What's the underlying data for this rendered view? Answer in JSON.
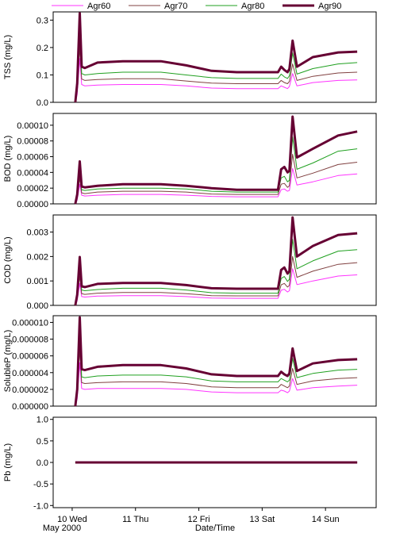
{
  "legend": {
    "position": "top",
    "entries": [
      {
        "name": "Agr60",
        "color": "#ff33ff",
        "width": 1
      },
      {
        "name": "Agr70",
        "color": "#804040",
        "width": 1
      },
      {
        "name": "Agr80",
        "color": "#20a020",
        "width": 1
      },
      {
        "name": "Agr90",
        "color": "#660033",
        "width": 3
      }
    ]
  },
  "x_axis": {
    "label": "Date/Time",
    "range_days": [
      9.7,
      14.8
    ],
    "ticks": [
      {
        "day": 10,
        "label": "10 Wed"
      },
      {
        "day": 11,
        "label": "11 Thu"
      },
      {
        "day": 12,
        "label": "12 Fri"
      },
      {
        "day": 13,
        "label": "13 Sat"
      },
      {
        "day": 14,
        "label": "14 Sun"
      }
    ],
    "sublabel": "May 2000"
  },
  "chart_data": [
    {
      "type": "line",
      "ylabel": "TSS (mg/L)",
      "ylim": [
        0,
        0.33
      ],
      "yticks": [
        "0.0",
        "0.1",
        "0.2",
        "0.3"
      ],
      "ytick_values": [
        0,
        0.1,
        0.2,
        0.3
      ],
      "grid": false,
      "series": [
        {
          "name": "Agr60",
          "x": [
            10.05,
            10.08,
            10.12,
            10.15,
            10.2,
            10.4,
            10.8,
            11.4,
            11.8,
            12.2,
            12.6,
            13.0,
            13.25,
            13.3,
            13.35,
            13.4,
            13.43,
            13.48,
            13.55,
            13.8,
            14.2,
            14.5
          ],
          "y": [
            0.0,
            0.03,
            0.16,
            0.065,
            0.06,
            0.063,
            0.065,
            0.065,
            0.06,
            0.052,
            0.05,
            0.05,
            0.05,
            0.06,
            0.055,
            0.05,
            0.058,
            0.105,
            0.06,
            0.072,
            0.08,
            0.082
          ]
        },
        {
          "name": "Agr70",
          "x": [
            10.05,
            10.08,
            10.12,
            10.15,
            10.2,
            10.4,
            10.8,
            11.4,
            11.8,
            12.2,
            12.6,
            13.0,
            13.25,
            13.3,
            13.35,
            13.4,
            13.43,
            13.48,
            13.55,
            13.8,
            14.2,
            14.5
          ],
          "y": [
            0.0,
            0.04,
            0.2,
            0.085,
            0.08,
            0.083,
            0.086,
            0.086,
            0.078,
            0.07,
            0.068,
            0.068,
            0.068,
            0.08,
            0.072,
            0.068,
            0.076,
            0.14,
            0.08,
            0.095,
            0.107,
            0.11
          ]
        },
        {
          "name": "Agr80",
          "x": [
            10.05,
            10.08,
            10.12,
            10.15,
            10.2,
            10.4,
            10.8,
            11.4,
            11.8,
            12.2,
            12.6,
            13.0,
            13.25,
            13.3,
            13.35,
            13.4,
            13.43,
            13.48,
            13.55,
            13.8,
            14.2,
            14.5
          ],
          "y": [
            0.0,
            0.05,
            0.26,
            0.105,
            0.1,
            0.105,
            0.11,
            0.11,
            0.1,
            0.09,
            0.087,
            0.087,
            0.087,
            0.103,
            0.093,
            0.087,
            0.097,
            0.18,
            0.103,
            0.123,
            0.14,
            0.145
          ]
        },
        {
          "name": "Agr90",
          "x": [
            10.05,
            10.08,
            10.12,
            10.15,
            10.2,
            10.4,
            10.8,
            11.4,
            11.8,
            12.2,
            12.6,
            13.0,
            13.25,
            13.3,
            13.35,
            13.4,
            13.43,
            13.48,
            13.55,
            13.8,
            14.2,
            14.5
          ],
          "y": [
            0.0,
            0.07,
            0.325,
            0.13,
            0.125,
            0.145,
            0.15,
            0.15,
            0.135,
            0.115,
            0.11,
            0.11,
            0.11,
            0.13,
            0.118,
            0.11,
            0.122,
            0.225,
            0.13,
            0.165,
            0.182,
            0.185
          ]
        }
      ]
    },
    {
      "type": "line",
      "ylabel": "BOD (mg/L)",
      "ylim": [
        0,
        0.000115
      ],
      "yticks": [
        "0.00000",
        "0.00002",
        "0.00004",
        "0.00006",
        "0.00008",
        "0.00010"
      ],
      "ytick_values": [
        0,
        2e-05,
        4e-05,
        6e-05,
        8e-05,
        0.0001
      ],
      "grid": false,
      "series": [
        {
          "name": "Agr60",
          "x": [
            10.05,
            10.08,
            10.12,
            10.15,
            10.2,
            10.4,
            10.8,
            11.4,
            11.8,
            12.2,
            12.6,
            13.0,
            13.25,
            13.3,
            13.35,
            13.4,
            13.43,
            13.48,
            13.55,
            13.8,
            14.2,
            14.5
          ],
          "y": [
            0.0,
            5e-06,
            2.5e-05,
            1.1e-05,
            1e-05,
            1.1e-05,
            1.2e-05,
            1.2e-05,
            1.1e-05,
            9.5e-06,
            9e-06,
            9e-06,
            9e-06,
            1.8e-05,
            1.9e-05,
            1.6e-05,
            1.7e-05,
            4.5e-05,
            2.4e-05,
            2.8e-05,
            3.6e-05,
            3.8e-05
          ]
        },
        {
          "name": "Agr70",
          "x": [
            10.05,
            10.08,
            10.12,
            10.15,
            10.2,
            10.4,
            10.8,
            11.4,
            11.8,
            12.2,
            12.6,
            13.0,
            13.25,
            13.3,
            13.35,
            13.4,
            13.43,
            13.48,
            13.55,
            13.8,
            14.2,
            14.5
          ],
          "y": [
            0.0,
            7e-06,
            3.3e-05,
            1.4e-05,
            1.3e-05,
            1.5e-05,
            1.6e-05,
            1.6e-05,
            1.5e-05,
            1.25e-05,
            1.2e-05,
            1.2e-05,
            1.2e-05,
            2.5e-05,
            2.6e-05,
            2.1e-05,
            2.3e-05,
            6.3e-05,
            3.3e-05,
            3.9e-05,
            5e-05,
            5.3e-05
          ]
        },
        {
          "name": "Agr80",
          "x": [
            10.05,
            10.08,
            10.12,
            10.15,
            10.2,
            10.4,
            10.8,
            11.4,
            11.8,
            12.2,
            12.6,
            13.0,
            13.25,
            13.3,
            13.35,
            13.4,
            13.43,
            13.48,
            13.55,
            13.8,
            14.2,
            14.5
          ],
          "y": [
            0.0,
            9e-06,
            4.2e-05,
            1.8e-05,
            1.7e-05,
            1.9e-05,
            2e-05,
            2e-05,
            1.9e-05,
            1.6e-05,
            1.5e-05,
            1.5e-05,
            1.5e-05,
            3.3e-05,
            3.5e-05,
            2.8e-05,
            3e-05,
            8.5e-05,
            4.4e-05,
            5.2e-05,
            6.7e-05,
            7e-05
          ]
        },
        {
          "name": "Agr90",
          "x": [
            10.05,
            10.08,
            10.12,
            10.15,
            10.2,
            10.4,
            10.8,
            11.4,
            11.8,
            12.2,
            12.6,
            13.0,
            13.25,
            13.3,
            13.35,
            13.4,
            13.43,
            13.48,
            13.55,
            13.8,
            14.2,
            14.5
          ],
          "y": [
            0.0,
            1.2e-05,
            5.4e-05,
            2.2e-05,
            2.1e-05,
            2.3e-05,
            2.5e-05,
            2.5e-05,
            2.3e-05,
            2e-05,
            1.8e-05,
            1.8e-05,
            1.8e-05,
            4.4e-05,
            4.7e-05,
            4e-05,
            4.2e-05,
            0.000111,
            5.9e-05,
            7e-05,
            8.7e-05,
            9.2e-05
          ]
        }
      ]
    },
    {
      "type": "line",
      "ylabel": "COD (mg/L)",
      "ylim": [
        0,
        0.0037
      ],
      "yticks": [
        "0.000",
        "0.001",
        "0.002",
        "0.003"
      ],
      "ytick_values": [
        0,
        0.001,
        0.002,
        0.003
      ],
      "grid": false,
      "series": [
        {
          "name": "Agr60",
          "x": [
            10.05,
            10.08,
            10.12,
            10.15,
            10.2,
            10.4,
            10.8,
            11.4,
            11.8,
            12.2,
            12.6,
            13.0,
            13.25,
            13.3,
            13.35,
            13.4,
            13.43,
            13.48,
            13.55,
            13.8,
            14.2,
            14.5
          ],
          "y": [
            0.0,
            0.0002,
            0.0009,
            0.00036,
            0.00034,
            0.00038,
            0.0004,
            0.0004,
            0.00036,
            0.0003,
            0.00029,
            0.00029,
            0.00029,
            0.00062,
            0.00066,
            0.00055,
            0.0006,
            0.0015,
            0.00085,
            0.001,
            0.0012,
            0.00125
          ]
        },
        {
          "name": "Agr70",
          "x": [
            10.05,
            10.08,
            10.12,
            10.15,
            10.2,
            10.4,
            10.8,
            11.4,
            11.8,
            12.2,
            12.6,
            13.0,
            13.25,
            13.3,
            13.35,
            13.4,
            13.43,
            13.48,
            13.55,
            13.8,
            14.2,
            14.5
          ],
          "y": [
            0.0,
            0.00026,
            0.0012,
            0.00048,
            0.00045,
            0.0005,
            0.00053,
            0.00053,
            0.00048,
            0.0004,
            0.00039,
            0.00039,
            0.00039,
            0.00084,
            0.0009,
            0.00075,
            0.00082,
            0.002,
            0.00115,
            0.0014,
            0.00168,
            0.00175
          ]
        },
        {
          "name": "Agr80",
          "x": [
            10.05,
            10.08,
            10.12,
            10.15,
            10.2,
            10.4,
            10.8,
            11.4,
            11.8,
            12.2,
            12.6,
            13.0,
            13.25,
            13.3,
            13.35,
            13.4,
            13.43,
            13.48,
            13.55,
            13.8,
            14.2,
            14.5
          ],
          "y": [
            0.0,
            0.00034,
            0.0016,
            0.00063,
            0.0006,
            0.00065,
            0.0007,
            0.0007,
            0.00063,
            0.00052,
            0.0005,
            0.0005,
            0.0005,
            0.0011,
            0.00118,
            0.00098,
            0.00107,
            0.0027,
            0.0015,
            0.00182,
            0.00222,
            0.00228
          ]
        },
        {
          "name": "Agr90",
          "x": [
            10.05,
            10.08,
            10.12,
            10.15,
            10.2,
            10.4,
            10.8,
            11.4,
            11.8,
            12.2,
            12.6,
            13.0,
            13.25,
            13.3,
            13.35,
            13.4,
            13.43,
            13.48,
            13.55,
            13.8,
            14.2,
            14.5
          ],
          "y": [
            0.0,
            0.00044,
            0.00198,
            0.00078,
            0.00075,
            0.00088,
            0.00092,
            0.00092,
            0.00083,
            0.0007,
            0.00068,
            0.00068,
            0.00068,
            0.00145,
            0.00155,
            0.0013,
            0.0014,
            0.0036,
            0.002,
            0.00243,
            0.00288,
            0.00295
          ]
        }
      ]
    },
    {
      "type": "line",
      "ylabel": "SolubleP (mg/L)",
      "ylim": [
        0,
        1.08e-05
      ],
      "yticks": [
        "0.000000",
        "0.000002",
        "0.000004",
        "0.000006",
        "0.000008",
        "0.000010"
      ],
      "ytick_values": [
        0,
        2e-06,
        4e-06,
        6e-06,
        8e-06,
        1e-05
      ],
      "grid": false,
      "series": [
        {
          "name": "Agr60",
          "x": [
            10.05,
            10.08,
            10.12,
            10.15,
            10.2,
            10.4,
            10.8,
            11.4,
            11.8,
            12.2,
            12.6,
            13.0,
            13.25,
            13.3,
            13.35,
            13.4,
            13.43,
            13.48,
            13.55,
            13.8,
            14.2,
            14.5
          ],
          "y": [
            0.0,
            9e-07,
            5.2e-06,
            2.1e-06,
            2e-06,
            2.1e-06,
            2.1e-06,
            2.1e-06,
            2e-06,
            1.7e-06,
            1.6e-06,
            1.6e-06,
            1.6e-06,
            1.9e-06,
            1.8e-06,
            1.6e-06,
            1.8e-06,
            3.3e-06,
            1.9e-06,
            2.2e-06,
            2.4e-06,
            2.5e-06
          ]
        },
        {
          "name": "Agr70",
          "x": [
            10.05,
            10.08,
            10.12,
            10.15,
            10.2,
            10.4,
            10.8,
            11.4,
            11.8,
            12.2,
            12.6,
            13.0,
            13.25,
            13.3,
            13.35,
            13.4,
            13.43,
            13.48,
            13.55,
            13.8,
            14.2,
            14.5
          ],
          "y": [
            0.0,
            1.3e-06,
            6.8e-06,
            2.8e-06,
            2.7e-06,
            2.8e-06,
            2.9e-06,
            2.9e-06,
            2.7e-06,
            2.3e-06,
            2.2e-06,
            2.2e-06,
            2.2e-06,
            2.6e-06,
            2.4e-06,
            2.2e-06,
            2.4e-06,
            4.5e-06,
            2.6e-06,
            3e-06,
            3.3e-06,
            3.4e-06
          ]
        },
        {
          "name": "Agr80",
          "x": [
            10.05,
            10.08,
            10.12,
            10.15,
            10.2,
            10.4,
            10.8,
            11.4,
            11.8,
            12.2,
            12.6,
            13.0,
            13.25,
            13.3,
            13.35,
            13.4,
            13.43,
            13.48,
            13.55,
            13.8,
            14.2,
            14.5
          ],
          "y": [
            0.0,
            1.6e-06,
            8.6e-06,
            3.5e-06,
            3.4e-06,
            3.6e-06,
            3.7e-06,
            3.7e-06,
            3.5e-06,
            3e-06,
            2.9e-06,
            2.9e-06,
            2.9e-06,
            3.3e-06,
            3.1e-06,
            2.9e-06,
            3.1e-06,
            5.7e-06,
            3.4e-06,
            3.9e-06,
            4.3e-06,
            4.4e-06
          ]
        },
        {
          "name": "Agr90",
          "x": [
            10.05,
            10.08,
            10.12,
            10.15,
            10.2,
            10.4,
            10.8,
            11.4,
            11.8,
            12.2,
            12.6,
            13.0,
            13.25,
            13.3,
            13.35,
            13.4,
            13.43,
            13.48,
            13.55,
            13.8,
            14.2,
            14.5
          ],
          "y": [
            0.0,
            2e-06,
            1.06e-05,
            4.4e-06,
            4.3e-06,
            4.7e-06,
            4.9e-06,
            4.9e-06,
            4.5e-06,
            3.8e-06,
            3.6e-06,
            3.6e-06,
            3.6e-06,
            4.1e-06,
            3.8e-06,
            3.6e-06,
            3.9e-06,
            6.9e-06,
            4.2e-06,
            5.1e-06,
            5.5e-06,
            5.6e-06
          ]
        }
      ]
    },
    {
      "type": "line",
      "ylabel": "Pb (mg/L)",
      "ylim": [
        -1.05,
        1.05
      ],
      "yticks": [
        "-1.0",
        "-0.5",
        "0.0",
        "0.5",
        "1.0"
      ],
      "ytick_values": [
        -1,
        -0.5,
        0,
        0.5,
        1
      ],
      "grid": false,
      "series": [
        {
          "name": "Agr60",
          "x": [
            10.05,
            14.5
          ],
          "y": [
            0,
            0
          ]
        },
        {
          "name": "Agr70",
          "x": [
            10.05,
            14.5
          ],
          "y": [
            0,
            0
          ]
        },
        {
          "name": "Agr80",
          "x": [
            10.05,
            14.5
          ],
          "y": [
            0,
            0
          ]
        },
        {
          "name": "Agr90",
          "x": [
            10.05,
            14.5
          ],
          "y": [
            0,
            0
          ]
        }
      ]
    }
  ]
}
